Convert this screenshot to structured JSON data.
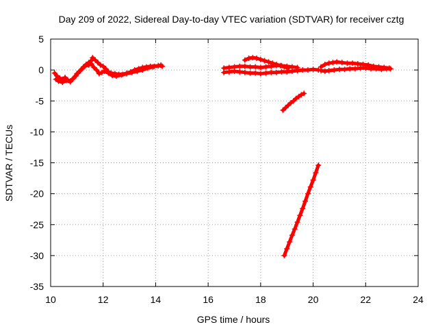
{
  "chart_data": {
    "type": "scatter",
    "title": "Day 209 of 2022, Sidereal Day-to-day VTEC variation (SDTVAR) for receiver cztg",
    "xlabel": "GPS time / hours",
    "ylabel": "SDTVAR / TECUs",
    "xlim": [
      10,
      24
    ],
    "ylim": [
      -35,
      5
    ],
    "xticks": [
      10,
      12,
      14,
      16,
      18,
      20,
      22,
      24
    ],
    "yticks": [
      5,
      0,
      -5,
      -10,
      -15,
      -20,
      -25,
      -30,
      -35
    ],
    "grid": true,
    "marker": "plus",
    "color": "#ff0000",
    "series": [
      {
        "x": [
          10.15,
          10.25,
          10.35,
          10.45,
          10.55,
          10.65,
          10.75,
          10.85,
          10.95,
          11.05,
          11.15,
          11.25,
          11.35,
          11.45,
          11.55,
          11.6,
          11.7,
          11.8,
          11.9,
          12.0,
          12.1,
          12.2,
          12.3,
          12.45,
          12.6,
          12.75,
          12.9,
          13.05,
          13.2,
          13.35,
          13.5,
          13.65,
          13.8,
          13.95,
          14.1,
          14.2
        ],
        "y": [
          -0.5,
          -1.0,
          -1.3,
          -1.5,
          -1.2,
          -1.6,
          -1.8,
          -1.4,
          -1.0,
          -0.5,
          0.0,
          0.5,
          0.9,
          1.2,
          1.5,
          2.0,
          1.6,
          1.2,
          0.8,
          0.6,
          0.2,
          -0.3,
          -0.5,
          -0.6,
          -0.7,
          -0.7,
          -0.5,
          -0.3,
          0.0,
          0.2,
          0.4,
          0.5,
          0.6,
          0.6,
          0.7,
          0.8
        ]
      },
      {
        "x": [
          10.2,
          10.3,
          10.45,
          10.6,
          10.75,
          10.9,
          11.0,
          11.1,
          11.2,
          11.3,
          11.45,
          11.55,
          11.65,
          11.75,
          11.85,
          11.95,
          12.05,
          12.2,
          12.35,
          12.5,
          12.7,
          12.9,
          13.1,
          13.3,
          13.5,
          13.7,
          13.9,
          14.1,
          14.25
        ],
        "y": [
          -1.5,
          -1.8,
          -2.0,
          -1.7,
          -1.9,
          -1.2,
          -0.6,
          -0.2,
          0.2,
          0.6,
          0.8,
          1.0,
          0.4,
          0.0,
          -0.6,
          -0.4,
          -0.2,
          -0.5,
          -0.9,
          -1.0,
          -0.8,
          -0.6,
          -0.4,
          -0.2,
          0.0,
          0.3,
          0.5,
          0.7,
          0.6
        ]
      },
      {
        "x": [
          16.6,
          16.8,
          17.0,
          17.2,
          17.4,
          17.6,
          17.8,
          18.0,
          18.2,
          18.4,
          18.6,
          18.8,
          19.0,
          19.2,
          19.4
        ],
        "y": [
          0.3,
          0.4,
          0.5,
          0.6,
          0.6,
          0.5,
          0.5,
          0.4,
          0.5,
          0.6,
          0.7,
          0.7,
          0.6,
          0.5,
          0.4
        ]
      },
      {
        "x": [
          16.6,
          16.8,
          17.0,
          17.2,
          17.4,
          17.6,
          17.8,
          18.0,
          18.2,
          18.4,
          18.6,
          18.8,
          19.0,
          19.2,
          19.4,
          19.6,
          19.8,
          20.0,
          20.2
        ],
        "y": [
          -0.4,
          -0.3,
          -0.2,
          -0.3,
          -0.4,
          -0.5,
          -0.5,
          -0.6,
          -0.5,
          -0.4,
          -0.4,
          -0.3,
          -0.3,
          -0.2,
          -0.1,
          0.0,
          0.0,
          0.1,
          0.0
        ]
      },
      {
        "x": [
          17.4,
          17.55,
          17.7,
          17.85,
          18.0,
          18.15,
          18.3,
          18.45,
          18.6,
          18.75,
          18.9,
          19.05
        ],
        "y": [
          1.6,
          1.9,
          2.0,
          1.9,
          1.7,
          1.5,
          1.3,
          1.1,
          0.9,
          0.7,
          0.5,
          0.3
        ]
      },
      {
        "x": [
          18.85,
          18.95,
          19.05,
          19.15,
          19.25,
          19.35,
          19.45,
          19.55,
          19.65
        ],
        "y": [
          -6.5,
          -6.1,
          -5.7,
          -5.3,
          -5.0,
          -4.6,
          -4.3,
          -4.0,
          -3.8
        ]
      },
      {
        "x": [
          18.9,
          19.0,
          19.1,
          19.2,
          19.3,
          19.4,
          19.5,
          19.6,
          19.7,
          19.8,
          19.9,
          20.0,
          20.1,
          20.2
        ],
        "y": [
          -30.0,
          -28.9,
          -27.8,
          -26.7,
          -25.7,
          -24.6,
          -23.5,
          -22.4,
          -21.2,
          -20.0,
          -18.9,
          -17.8,
          -16.6,
          -15.4
        ]
      },
      {
        "x": [
          20.3,
          20.45,
          20.6,
          20.75,
          20.9,
          21.1,
          21.3,
          21.5,
          21.7,
          21.9,
          22.1,
          22.3,
          22.5,
          22.7,
          22.9
        ],
        "y": [
          0.5,
          0.9,
          1.1,
          1.2,
          1.3,
          1.2,
          1.1,
          1.1,
          1.0,
          0.9,
          0.8,
          0.6,
          0.5,
          0.4,
          0.3
        ]
      },
      {
        "x": [
          20.3,
          20.45,
          20.6,
          20.8,
          21.0,
          21.2,
          21.4,
          21.6,
          21.8,
          22.0,
          22.2,
          22.4,
          22.6,
          22.8,
          22.95
        ],
        "y": [
          -0.1,
          -0.2,
          -0.1,
          0.0,
          0.1,
          0.1,
          0.2,
          0.2,
          0.3,
          0.3,
          0.2,
          0.2,
          0.1,
          0.2,
          0.2
        ]
      }
    ]
  }
}
